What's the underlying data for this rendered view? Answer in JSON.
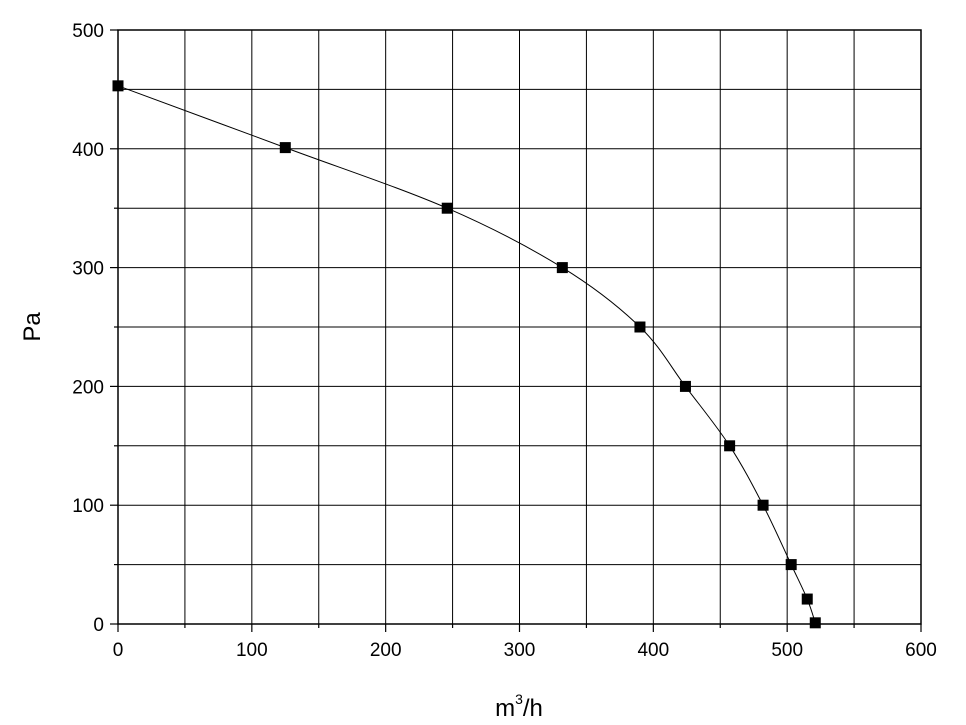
{
  "chart_data": {
    "type": "line",
    "title": "",
    "xlabel": {
      "base": "m",
      "superscript": "3",
      "suffix": "/h"
    },
    "ylabel": "Pa",
    "xlim": [
      0,
      600
    ],
    "ylim": [
      0,
      500
    ],
    "x_ticks": [
      0,
      100,
      200,
      300,
      400,
      500,
      600
    ],
    "x_tick_labels": [
      "0",
      "100",
      "200",
      "300",
      "400",
      "500",
      "600"
    ],
    "y_ticks": [
      0,
      100,
      200,
      300,
      400,
      500
    ],
    "y_tick_labels": [
      "0",
      "100",
      "200",
      "300",
      "400",
      "500"
    ],
    "x_grid_step": 50,
    "y_grid_step": 50,
    "grid": true,
    "marker": "square",
    "line_color": "#000000",
    "marker_color": "#000000",
    "series": [
      {
        "x": [
          0,
          125,
          246,
          332,
          390,
          424,
          457,
          482,
          503,
          515,
          521
        ],
        "y": [
          453,
          401,
          350,
          300,
          250,
          200,
          150,
          100,
          50,
          21,
          1
        ]
      }
    ]
  }
}
